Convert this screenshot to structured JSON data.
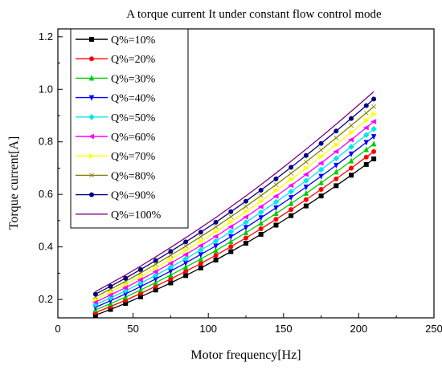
{
  "chart_data": {
    "type": "line",
    "title": "A torque current It under constant flow control mode",
    "xlabel": "Motor frequency[Hz]",
    "ylabel": "Torque current[A]",
    "xlim": [
      0,
      250
    ],
    "ylim": [
      0.13,
      1.23
    ],
    "xticks": [
      0,
      50,
      100,
      150,
      200,
      250
    ],
    "yticks": [
      0.2,
      0.4,
      0.6,
      0.8,
      1.0,
      1.2
    ],
    "ytick_labels": [
      "0.2",
      "0.4",
      "0.6",
      "0.8",
      "1.0",
      "1.2"
    ],
    "grid": false,
    "legend_position": "top-left",
    "x": [
      25,
      35,
      45,
      55,
      65,
      75,
      85,
      95,
      105,
      115,
      125,
      135,
      145,
      155,
      165,
      175,
      185,
      195,
      205,
      210
    ],
    "series": [
      {
        "name": "Q%=10%",
        "color": "#000000",
        "marker": "square",
        "values": [
          0.14,
          0.162,
          0.185,
          0.21,
          0.236,
          0.263,
          0.291,
          0.32,
          0.35,
          0.382,
          0.414,
          0.448,
          0.483,
          0.519,
          0.556,
          0.594,
          0.633,
          0.673,
          0.714,
          0.735
        ]
      },
      {
        "name": "Q%=20%",
        "color": "#ff0000",
        "marker": "circle",
        "values": [
          0.15,
          0.173,
          0.197,
          0.223,
          0.25,
          0.278,
          0.307,
          0.337,
          0.368,
          0.401,
          0.434,
          0.469,
          0.505,
          0.542,
          0.58,
          0.619,
          0.659,
          0.7,
          0.742,
          0.763
        ]
      },
      {
        "name": "Q%=30%",
        "color": "#00cc00",
        "marker": "triangle-up",
        "values": [
          0.16,
          0.184,
          0.209,
          0.236,
          0.264,
          0.293,
          0.323,
          0.354,
          0.386,
          0.42,
          0.454,
          0.49,
          0.527,
          0.565,
          0.604,
          0.644,
          0.685,
          0.727,
          0.77,
          0.792
        ]
      },
      {
        "name": "Q%=40%",
        "color": "#0000ff",
        "marker": "triangle-down",
        "values": [
          0.17,
          0.195,
          0.221,
          0.249,
          0.278,
          0.308,
          0.339,
          0.371,
          0.404,
          0.439,
          0.474,
          0.511,
          0.549,
          0.588,
          0.628,
          0.669,
          0.711,
          0.754,
          0.798,
          0.82
        ]
      },
      {
        "name": "Q%=50%",
        "color": "#00e5ee",
        "marker": "diamond",
        "values": [
          0.18,
          0.206,
          0.233,
          0.262,
          0.292,
          0.323,
          0.355,
          0.388,
          0.422,
          0.458,
          0.494,
          0.532,
          0.571,
          0.611,
          0.652,
          0.694,
          0.737,
          0.781,
          0.826,
          0.849
        ]
      },
      {
        "name": "Q%=60%",
        "color": "#ff00ff",
        "marker": "triangle-left",
        "values": [
          0.19,
          0.217,
          0.245,
          0.275,
          0.306,
          0.338,
          0.371,
          0.405,
          0.44,
          0.477,
          0.514,
          0.553,
          0.593,
          0.634,
          0.676,
          0.719,
          0.763,
          0.808,
          0.854,
          0.877
        ]
      },
      {
        "name": "Q%=70%",
        "color": "#ffff00",
        "marker": "triangle-right",
        "values": [
          0.2,
          0.228,
          0.257,
          0.288,
          0.32,
          0.353,
          0.387,
          0.422,
          0.458,
          0.496,
          0.534,
          0.574,
          0.615,
          0.657,
          0.7,
          0.744,
          0.789,
          0.835,
          0.882,
          0.906
        ]
      },
      {
        "name": "Q%=80%",
        "color": "#808000",
        "marker": "cross",
        "values": [
          0.21,
          0.239,
          0.269,
          0.301,
          0.334,
          0.368,
          0.403,
          0.439,
          0.476,
          0.515,
          0.554,
          0.595,
          0.637,
          0.68,
          0.724,
          0.769,
          0.815,
          0.862,
          0.91,
          0.934
        ]
      },
      {
        "name": "Q%=90%",
        "color": "#000080",
        "marker": "circle",
        "values": [
          0.22,
          0.25,
          0.281,
          0.314,
          0.348,
          0.383,
          0.419,
          0.456,
          0.494,
          0.534,
          0.574,
          0.616,
          0.659,
          0.703,
          0.748,
          0.794,
          0.841,
          0.889,
          0.938,
          0.963
        ]
      },
      {
        "name": "Q%=100%",
        "color": "#800080",
        "marker": "none",
        "values": [
          0.23,
          0.261,
          0.293,
          0.327,
          0.362,
          0.398,
          0.435,
          0.473,
          0.512,
          0.553,
          0.594,
          0.637,
          0.681,
          0.726,
          0.772,
          0.819,
          0.867,
          0.916,
          0.966,
          0.991
        ]
      }
    ]
  }
}
